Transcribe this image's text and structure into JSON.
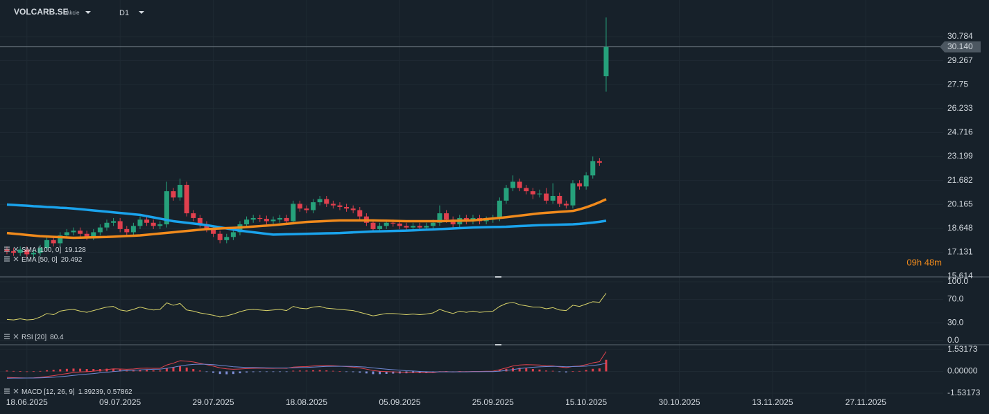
{
  "header": {
    "symbol": "VOLCARB.SE",
    "asset_type": "Akcie",
    "timeframe": "D1",
    "countdown": "09h 48m"
  },
  "chart_data": [
    {
      "type": "candlestick",
      "xlim": [
        -1.04,
        140.63
      ],
      "xticks": [
        {
          "value": 3,
          "label": "18.06.2025"
        },
        {
          "value": 17,
          "label": "09.07.2025"
        },
        {
          "value": 31,
          "label": "29.07.2025"
        },
        {
          "value": 45,
          "label": "18.08.2025"
        },
        {
          "value": 59,
          "label": "05.09.2025"
        },
        {
          "value": 73,
          "label": "25.09.2025"
        },
        {
          "value": 87,
          "label": "15.10.2025"
        },
        {
          "value": 101,
          "label": "30.10.2025"
        },
        {
          "value": 115,
          "label": "13.11.2025"
        },
        {
          "value": 129,
          "label": "27.11.2025"
        }
      ],
      "ylim": [
        15.614,
        32.888
      ],
      "yticks": [
        15.614,
        17.131,
        18.648,
        20.165,
        21.682,
        23.199,
        24.716,
        26.233,
        27.75,
        {
          "value": 29.267,
          "label": "29.267"
        },
        30.784
      ],
      "grid": true,
      "up_color": "#26a17b",
      "down_color": "#e0404e",
      "open": [
        17.3,
        17.2,
        17.1,
        17.3,
        17.0,
        17.1,
        17.4,
        17.9,
        17.7,
        18.2,
        18.4,
        18.5,
        18.3,
        18.1,
        18.4,
        18.7,
        19.0,
        19.1,
        18.6,
        18.4,
        18.8,
        19.2,
        19.0,
        18.8,
        18.9,
        21.0,
        20.6,
        21.4,
        19.6,
        19.3,
        18.9,
        18.6,
        18.3,
        17.9,
        18.1,
        18.4,
        18.9,
        19.2,
        19.3,
        19.25,
        19.1,
        19.2,
        19.3,
        19.1,
        20.2,
        19.9,
        19.8,
        20.3,
        20.5,
        20.2,
        20.1,
        20.0,
        19.9,
        19.8,
        19.4,
        19.0,
        18.6,
        18.8,
        19.0,
        18.95,
        18.8,
        18.7,
        18.8,
        18.7,
        18.8,
        19.0,
        19.6,
        19.2,
        18.9,
        19.3,
        19.1,
        19.3,
        19.1,
        19.2,
        19.3,
        20.4,
        21.2,
        21.6,
        21.2,
        21.0,
        20.8,
        20.85,
        20.4,
        20.7,
        20.2,
        20.1,
        21.5,
        21.3,
        22.0,
        22.9,
        28.28
      ],
      "high": [
        17.5,
        17.4,
        17.5,
        17.5,
        17.3,
        17.6,
        18.1,
        18.1,
        18.4,
        18.6,
        18.7,
        18.7,
        18.5,
        18.6,
        18.9,
        19.2,
        19.3,
        19.3,
        18.8,
        19.0,
        19.4,
        19.4,
        19.2,
        19.1,
        21.6,
        21.2,
        21.8,
        21.6,
        19.8,
        19.5,
        19.1,
        18.8,
        18.5,
        18.3,
        18.6,
        19.1,
        19.4,
        19.5,
        19.5,
        19.45,
        19.4,
        19.5,
        19.5,
        20.4,
        20.4,
        20.1,
        20.5,
        20.7,
        20.7,
        20.4,
        20.3,
        20.2,
        20.1,
        20.0,
        19.6,
        19.2,
        19.0,
        19.2,
        19.2,
        19.15,
        19.0,
        19.0,
        19.0,
        19.0,
        19.2,
        20.1,
        19.8,
        19.4,
        19.5,
        19.5,
        19.5,
        19.5,
        19.4,
        19.5,
        20.6,
        21.4,
        22.0,
        21.8,
        21.4,
        21.2,
        21.1,
        21.2,
        21.5,
        20.9,
        20.4,
        21.7,
        21.7,
        22.2,
        23.2,
        23.1,
        32.0
      ],
      "low": [
        17.0,
        16.9,
        16.9,
        16.8,
        16.8,
        16.9,
        17.2,
        17.5,
        17.5,
        18.0,
        18.2,
        18.1,
        17.9,
        17.9,
        18.2,
        18.5,
        18.8,
        18.4,
        18.2,
        18.2,
        18.6,
        18.8,
        18.6,
        18.6,
        18.7,
        20.4,
        20.4,
        19.4,
        19.1,
        18.7,
        18.4,
        18.1,
        17.7,
        17.7,
        17.9,
        18.2,
        18.7,
        19.0,
        19.05,
        18.9,
        18.9,
        19.0,
        18.9,
        18.9,
        19.7,
        19.6,
        19.6,
        20.1,
        20.0,
        19.9,
        19.8,
        19.7,
        19.6,
        19.2,
        18.8,
        18.4,
        18.4,
        18.6,
        18.75,
        18.6,
        18.5,
        18.5,
        18.5,
        18.5,
        18.6,
        18.8,
        19.0,
        18.7,
        18.7,
        18.9,
        18.9,
        18.9,
        18.9,
        19.0,
        19.1,
        20.2,
        21.0,
        21.0,
        20.8,
        20.5,
        20.6,
        20.2,
        20.2,
        20.0,
        19.9,
        19.9,
        21.1,
        21.1,
        21.8,
        22.6,
        27.3
      ],
      "close": [
        17.2,
        17.1,
        17.3,
        17.0,
        17.1,
        17.4,
        17.9,
        17.7,
        18.2,
        18.4,
        18.5,
        18.3,
        18.1,
        18.4,
        18.7,
        19.0,
        19.1,
        18.6,
        18.4,
        18.8,
        19.2,
        19.0,
        18.8,
        18.9,
        21.0,
        20.6,
        21.4,
        19.6,
        19.3,
        18.9,
        18.6,
        18.3,
        17.9,
        18.1,
        18.4,
        18.9,
        19.2,
        19.3,
        19.25,
        19.1,
        19.2,
        19.3,
        19.1,
        20.2,
        19.9,
        19.8,
        20.3,
        20.5,
        20.2,
        20.1,
        20.0,
        19.9,
        19.8,
        19.4,
        19.0,
        18.6,
        18.8,
        19.0,
        18.95,
        18.8,
        18.7,
        18.8,
        18.7,
        18.8,
        19.0,
        19.6,
        19.2,
        18.9,
        19.3,
        19.1,
        19.3,
        19.1,
        19.2,
        19.3,
        20.4,
        21.2,
        21.6,
        21.2,
        21.0,
        20.8,
        20.85,
        20.4,
        20.7,
        20.2,
        20.1,
        21.5,
        21.3,
        22.0,
        22.9,
        22.8,
        30.14
      ],
      "price_line": {
        "value": 30.14,
        "label": "30.140"
      },
      "series": [
        {
          "name": "SMA [100, 0]",
          "color": "#1aa3ec",
          "width": 3.5,
          "values": [
            20.15,
            20.13,
            20.1,
            20.08,
            20.05,
            20.03,
            20.0,
            19.98,
            19.95,
            19.93,
            19.9,
            19.86,
            19.82,
            19.78,
            19.74,
            19.7,
            19.66,
            19.62,
            19.58,
            19.54,
            19.5,
            19.42,
            19.34,
            19.26,
            19.18,
            19.1,
            19.05,
            19.0,
            18.95,
            18.9,
            18.85,
            18.78,
            18.71,
            18.64,
            18.57,
            18.5,
            18.45,
            18.4,
            18.35,
            18.3,
            18.25,
            18.26,
            18.27,
            18.28,
            18.29,
            18.3,
            18.31,
            18.32,
            18.33,
            18.34,
            18.35,
            18.37,
            18.39,
            18.41,
            18.43,
            18.45,
            18.46,
            18.47,
            18.48,
            18.49,
            18.5,
            18.52,
            18.54,
            18.56,
            18.58,
            18.6,
            18.62,
            18.64,
            18.66,
            18.68,
            18.7,
            18.71,
            18.72,
            18.73,
            18.74,
            18.75,
            18.77,
            18.79,
            18.81,
            18.83,
            18.85,
            18.86,
            18.87,
            18.88,
            18.89,
            18.9,
            18.93,
            18.97,
            19.01,
            19.06,
            19.128
          ]
        },
        {
          "name": "EMA [50, 0]",
          "color": "#f08a1c",
          "width": 3.5,
          "values": [
            18.35,
            18.31,
            18.27,
            18.23,
            18.19,
            18.15,
            18.13,
            18.11,
            18.09,
            18.07,
            18.05,
            18.06,
            18.07,
            18.08,
            18.09,
            18.1,
            18.12,
            18.14,
            18.16,
            18.18,
            18.2,
            18.24,
            18.28,
            18.32,
            18.36,
            18.4,
            18.44,
            18.48,
            18.52,
            18.56,
            18.6,
            18.62,
            18.64,
            18.66,
            18.68,
            18.7,
            18.73,
            18.76,
            18.79,
            18.82,
            18.85,
            18.89,
            18.93,
            18.97,
            19.01,
            19.05,
            19.07,
            19.09,
            19.11,
            19.13,
            19.15,
            19.15,
            19.15,
            19.15,
            19.15,
            19.15,
            19.14,
            19.13,
            19.12,
            19.11,
            19.1,
            19.1,
            19.1,
            19.1,
            19.1,
            19.1,
            19.11,
            19.12,
            19.13,
            19.14,
            19.15,
            19.19,
            19.23,
            19.27,
            19.31,
            19.35,
            19.4,
            19.45,
            19.5,
            19.55,
            19.6,
            19.63,
            19.66,
            19.69,
            19.72,
            19.75,
            19.85,
            19.98,
            20.13,
            20.3,
            20.492
          ]
        }
      ]
    },
    {
      "type": "line",
      "ylim": [
        -6,
        107
      ],
      "yticks": [
        {
          "value": 0,
          "label": "0.0"
        },
        {
          "value": 30,
          "label": "30.0"
        },
        {
          "value": 70,
          "label": "70.0"
        },
        {
          "value": 100,
          "label": "100.0"
        }
      ],
      "grid": true,
      "series": [
        {
          "name": "RSI [20]",
          "color": "#d9d46a",
          "width": 1,
          "values": [
            36,
            35,
            37,
            35,
            36,
            40,
            46,
            44,
            50,
            52,
            53,
            50,
            48,
            51,
            54,
            57,
            58,
            52,
            50,
            53,
            57,
            54,
            52,
            53,
            64,
            60,
            63,
            52,
            50,
            47,
            45,
            43,
            40,
            42,
            45,
            49,
            52,
            53,
            52,
            51,
            52,
            53,
            51,
            58,
            55,
            54,
            57,
            58,
            55,
            54,
            53,
            52,
            51,
            48,
            45,
            42,
            44,
            46,
            46,
            45,
            44,
            45,
            44,
            45,
            47,
            53,
            49,
            46,
            50,
            48,
            50,
            48,
            49,
            50,
            58,
            63,
            65,
            61,
            59,
            57,
            57,
            54,
            56,
            52,
            51,
            60,
            58,
            62,
            66,
            65,
            80.4
          ]
        }
      ]
    },
    {
      "type": "line",
      "ylim": [
        -1.87,
        1.82
      ],
      "yticks": [
        -1.53173,
        {
          "value": 0,
          "label": "0.00000"
        },
        1.53173
      ],
      "grid": true,
      "separator": ", ",
      "series": [
        {
          "type": "bar",
          "up_color": "#e0404e",
          "down_color": "#7f8fd8",
          "values": [
            0.06,
            0.03,
            0.02,
            0.0,
            0.01,
            0.03,
            0.08,
            0.11,
            0.15,
            0.18,
            0.2,
            0.19,
            0.17,
            0.17,
            0.17,
            0.19,
            0.19,
            0.14,
            0.09,
            0.09,
            0.11,
            0.1,
            0.07,
            0.06,
            0.23,
            0.29,
            0.37,
            0.27,
            0.17,
            0.06,
            -0.03,
            -0.1,
            -0.18,
            -0.2,
            -0.18,
            -0.13,
            -0.08,
            -0.05,
            -0.03,
            -0.03,
            -0.02,
            -0.01,
            -0.02,
            0.05,
            0.06,
            0.06,
            0.08,
            0.09,
            0.07,
            0.04,
            0.01,
            -0.02,
            -0.05,
            -0.09,
            -0.14,
            -0.19,
            -0.19,
            -0.17,
            -0.15,
            -0.14,
            -0.13,
            -0.11,
            -0.1,
            -0.08,
            -0.06,
            0.01,
            0.02,
            -0.01,
            0.02,
            0.01,
            0.02,
            0.02,
            0.02,
            0.03,
            0.1,
            0.18,
            0.25,
            0.25,
            0.22,
            0.17,
            0.13,
            0.06,
            0.04,
            -0.03,
            -0.07,
            0.01,
            0.03,
            0.1,
            0.18,
            0.21,
            0.81377
          ]
        },
        {
          "name": "MACD [12, 26, 9]",
          "color": "#e0434f",
          "width": 1,
          "values": [
            -0.42,
            -0.44,
            -0.45,
            -0.46,
            -0.45,
            -0.42,
            -0.35,
            -0.3,
            -0.22,
            -0.15,
            -0.08,
            -0.04,
            -0.02,
            0.02,
            0.07,
            0.13,
            0.18,
            0.17,
            0.15,
            0.17,
            0.22,
            0.23,
            0.22,
            0.22,
            0.45,
            0.58,
            0.75,
            0.72,
            0.66,
            0.57,
            0.47,
            0.37,
            0.25,
            0.18,
            0.15,
            0.17,
            0.2,
            0.22,
            0.23,
            0.22,
            0.22,
            0.23,
            0.22,
            0.3,
            0.33,
            0.34,
            0.38,
            0.42,
            0.42,
            0.4,
            0.37,
            0.34,
            0.3,
            0.24,
            0.16,
            0.06,
            0.01,
            -0.01,
            -0.03,
            -0.05,
            -0.08,
            -0.08,
            -0.1,
            -0.1,
            -0.09,
            -0.02,
            -0.01,
            -0.04,
            -0.01,
            -0.02,
            0.0,
            0.0,
            0.01,
            0.02,
            0.12,
            0.25,
            0.38,
            0.45,
            0.47,
            0.46,
            0.45,
            0.4,
            0.39,
            0.32,
            0.26,
            0.35,
            0.38,
            0.47,
            0.6,
            0.68,
            1.39239
          ]
        },
        {
          "color": "#7088d4",
          "width": 1,
          "values": [
            -0.48,
            -0.47,
            -0.47,
            -0.46,
            -0.46,
            -0.45,
            -0.43,
            -0.41,
            -0.37,
            -0.33,
            -0.28,
            -0.23,
            -0.19,
            -0.15,
            -0.1,
            -0.06,
            -0.01,
            0.03,
            0.06,
            0.08,
            0.11,
            0.13,
            0.15,
            0.16,
            0.22,
            0.29,
            0.38,
            0.45,
            0.49,
            0.51,
            0.5,
            0.47,
            0.43,
            0.38,
            0.33,
            0.3,
            0.28,
            0.27,
            0.26,
            0.25,
            0.24,
            0.24,
            0.24,
            0.25,
            0.27,
            0.28,
            0.3,
            0.33,
            0.35,
            0.36,
            0.36,
            0.36,
            0.35,
            0.33,
            0.3,
            0.25,
            0.2,
            0.16,
            0.12,
            0.09,
            0.05,
            0.03,
            0.0,
            -0.02,
            -0.03,
            -0.03,
            -0.03,
            -0.03,
            -0.03,
            -0.03,
            -0.02,
            -0.02,
            -0.01,
            -0.01,
            0.02,
            0.07,
            0.13,
            0.2,
            0.25,
            0.29,
            0.32,
            0.34,
            0.35,
            0.35,
            0.33,
            0.34,
            0.35,
            0.37,
            0.42,
            0.47,
            0.57862
          ]
        }
      ]
    }
  ]
}
